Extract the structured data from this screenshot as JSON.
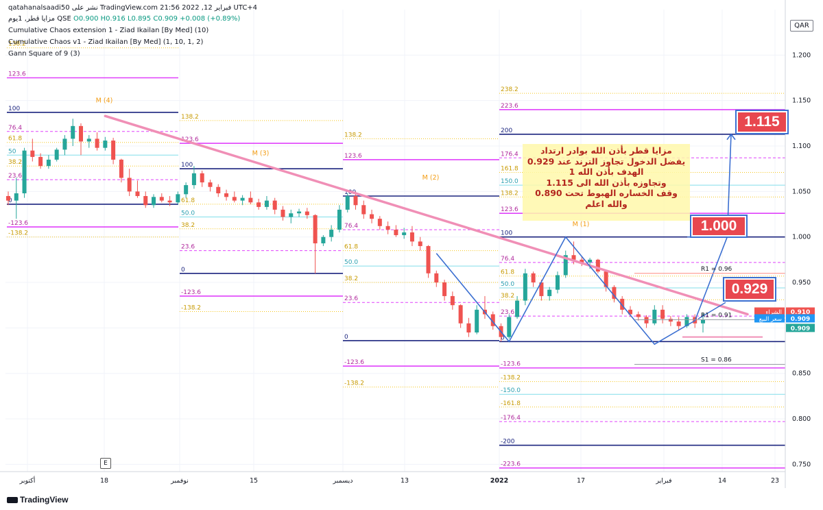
{
  "header": {
    "title_line": "qatahanalsaadi50 نشر على TradingView.com فبراير 12, 2022 21:56 UTC+4",
    "symbol_line": "مزايا قطر, 1يوم  QSE",
    "ohlc": "O0.900  H0.916  L0.895  C0.909  +0.008 (+0.89%)",
    "indicators": [
      "Cumulative Chaos extension 1 - Ziad Ikailan [By Med] (10)",
      "Cumulative Chaos v1 - Ziad Ikailan [By Med] (1, 10, 1, 2)",
      "Gann Square of 9 (3)"
    ]
  },
  "currency_badge": "QAR",
  "brand": "TradingView",
  "earnings_badge": "E",
  "colors": {
    "up": "#26a69a",
    "down": "#ef5350",
    "trend": "#f08fb6",
    "navy": "#1a237e",
    "magenta": "#e040fb",
    "gold": "#f5c518",
    "teal": "#80deea",
    "wave": "#3b6fd1"
  },
  "note_lines": [
    "مزايا قطر بأذن الله بوادر ارتداد",
    "يفضل الدخول تجاوز الترند عند 0.929",
    "الهدف بأذن الله 1",
    "وتجاوزه بأذن الله الى 1.115",
    "وقف الخساره الهبوط تحت 0.890",
    "والله اعلم"
  ],
  "callouts": [
    "1.115",
    "1.000",
    "0.929"
  ],
  "chart_data": {
    "type": "candlestick",
    "y_axis": {
      "ticks": [
        0.75,
        0.8,
        0.85,
        0.9,
        0.95,
        1.0,
        1.05,
        1.1,
        1.15,
        1.2
      ],
      "ylim": [
        0.742,
        1.25
      ]
    },
    "x_axis": {
      "ticks": [
        "أكتوبر",
        "18",
        "نوفمبر",
        "15",
        "ديسمبر",
        "13",
        "2022",
        "17",
        "فبراير",
        "14",
        "23"
      ]
    },
    "price_tags": [
      {
        "label": "الشراء",
        "value": "0.910",
        "color": "#ef5350"
      },
      {
        "label": "سعر البيع",
        "value": "0.909",
        "color": "#2196f3"
      },
      {
        "label": "",
        "value": "0.909",
        "color": "#26a69a"
      }
    ],
    "candles": [
      [
        1.045,
        1.05,
        1.035,
        1.04
      ],
      [
        1.04,
        1.065,
        1.02,
        1.048
      ],
      [
        1.048,
        1.098,
        1.043,
        1.095
      ],
      [
        1.095,
        1.108,
        1.083,
        1.088
      ],
      [
        1.088,
        1.092,
        1.075,
        1.078
      ],
      [
        1.078,
        1.09,
        1.075,
        1.085
      ],
      [
        1.085,
        1.098,
        1.083,
        1.096
      ],
      [
        1.096,
        1.112,
        1.09,
        1.108
      ],
      [
        1.108,
        1.13,
        1.1,
        1.122
      ],
      [
        1.122,
        1.125,
        1.09,
        1.105
      ],
      [
        1.105,
        1.112,
        1.098,
        1.108
      ],
      [
        1.108,
        1.115,
        1.095,
        1.098
      ],
      [
        1.098,
        1.11,
        1.095,
        1.106
      ],
      [
        1.106,
        1.109,
        1.08,
        1.085
      ],
      [
        1.085,
        1.086,
        1.06,
        1.065
      ],
      [
        1.065,
        1.075,
        1.045,
        1.05
      ],
      [
        1.05,
        1.062,
        1.043,
        1.045
      ],
      [
        1.045,
        1.05,
        1.032,
        1.035
      ],
      [
        1.035,
        1.047,
        1.032,
        1.044
      ],
      [
        1.044,
        1.048,
        1.038,
        1.04
      ],
      [
        1.04,
        1.045,
        1.034,
        1.038
      ],
      [
        1.038,
        1.05,
        1.036,
        1.047
      ],
      [
        1.047,
        1.06,
        1.043,
        1.057
      ],
      [
        1.057,
        1.078,
        1.053,
        1.07
      ],
      [
        1.07,
        1.073,
        1.055,
        1.06
      ],
      [
        1.06,
        1.063,
        1.05,
        1.055
      ],
      [
        1.055,
        1.058,
        1.044,
        1.048
      ],
      [
        1.048,
        1.052,
        1.04,
        1.044
      ],
      [
        1.044,
        1.05,
        1.038,
        1.04
      ],
      [
        1.04,
        1.046,
        1.035,
        1.043
      ],
      [
        1.043,
        1.05,
        1.036,
        1.038
      ],
      [
        1.038,
        1.042,
        1.03,
        1.033
      ],
      [
        1.033,
        1.045,
        1.03,
        1.04
      ],
      [
        1.04,
        1.043,
        1.025,
        1.03
      ],
      [
        1.03,
        1.034,
        1.018,
        1.022
      ],
      [
        1.022,
        1.03,
        1.015,
        1.026
      ],
      [
        1.026,
        1.031,
        1.022,
        1.028
      ],
      [
        1.028,
        1.032,
        1.02,
        1.024
      ],
      [
        1.024,
        1.025,
        0.96,
        0.993
      ],
      [
        0.993,
        1.002,
        0.99,
        1.0
      ],
      [
        1.0,
        1.013,
        0.995,
        1.008
      ],
      [
        1.008,
        1.035,
        1.005,
        1.03
      ],
      [
        1.03,
        1.048,
        1.027,
        1.045
      ],
      [
        1.045,
        1.05,
        1.03,
        1.035
      ],
      [
        1.035,
        1.04,
        1.02,
        1.025
      ],
      [
        1.025,
        1.03,
        1.015,
        1.02
      ],
      [
        1.02,
        1.023,
        1.008,
        1.012
      ],
      [
        1.012,
        1.017,
        1.003,
        1.008
      ],
      [
        1.008,
        1.013,
        1.0,
        1.002
      ],
      [
        1.002,
        1.01,
        0.998,
        1.005
      ],
      [
        1.005,
        1.012,
        0.99,
        0.995
      ],
      [
        0.995,
        1.0,
        0.985,
        0.99
      ],
      [
        0.99,
        0.991,
        0.955,
        0.96
      ],
      [
        0.96,
        0.963,
        0.945,
        0.95
      ],
      [
        0.95,
        0.953,
        0.93,
        0.935
      ],
      [
        0.935,
        0.94,
        0.92,
        0.925
      ],
      [
        0.925,
        0.926,
        0.9,
        0.905
      ],
      [
        0.905,
        0.911,
        0.89,
        0.895
      ],
      [
        0.895,
        0.925,
        0.893,
        0.92
      ],
      [
        0.92,
        0.935,
        0.91,
        0.915
      ],
      [
        0.915,
        0.918,
        0.898,
        0.902
      ],
      [
        0.902,
        0.905,
        0.885,
        0.89
      ],
      [
        0.89,
        0.915,
        0.888,
        0.912
      ],
      [
        0.912,
        0.935,
        0.91,
        0.93
      ],
      [
        0.93,
        0.965,
        0.925,
        0.96
      ],
      [
        0.96,
        0.962,
        0.945,
        0.95
      ],
      [
        0.95,
        0.953,
        0.93,
        0.935
      ],
      [
        0.935,
        0.945,
        0.93,
        0.942
      ],
      [
        0.942,
        0.962,
        0.938,
        0.958
      ],
      [
        0.958,
        0.985,
        0.955,
        0.98
      ],
      [
        0.98,
        0.995,
        0.97,
        0.975
      ],
      [
        0.975,
        0.978,
        0.968,
        0.972
      ],
      [
        0.972,
        0.977,
        0.965,
        0.975
      ],
      [
        0.975,
        0.976,
        0.96,
        0.962
      ],
      [
        0.962,
        0.963,
        0.94,
        0.945
      ],
      [
        0.945,
        0.947,
        0.928,
        0.932
      ],
      [
        0.932,
        0.935,
        0.915,
        0.92
      ],
      [
        0.92,
        0.924,
        0.912,
        0.915
      ],
      [
        0.915,
        0.918,
        0.908,
        0.912
      ],
      [
        0.912,
        0.914,
        0.9,
        0.905
      ],
      [
        0.905,
        0.925,
        0.903,
        0.92
      ],
      [
        0.92,
        0.925,
        0.905,
        0.91
      ],
      [
        0.91,
        0.913,
        0.902,
        0.907
      ],
      [
        0.907,
        0.912,
        0.898,
        0.902
      ],
      [
        0.902,
        0.915,
        0.9,
        0.912
      ],
      [
        0.912,
        0.915,
        0.9,
        0.905
      ],
      [
        0.905,
        0.916,
        0.895,
        0.909
      ]
    ],
    "level_blocks": [
      {
        "x0": 10,
        "x1": 260,
        "levels": [
          {
            "v": 1.208,
            "label": "138.2",
            "style": "gold-dot"
          },
          {
            "v": 1.175,
            "label": "123.6",
            "style": "magenta"
          },
          {
            "v": 1.137,
            "label": "100",
            "style": "navy"
          },
          {
            "v": 1.116,
            "label": "76.4",
            "style": "pink-dash"
          },
          {
            "v": 1.104,
            "label": "61.8",
            "style": "gold-dot"
          },
          {
            "v": 1.09,
            "label": "50",
            "style": "teal"
          },
          {
            "v": 1.078,
            "label": "38.2",
            "style": "gold-dot"
          },
          {
            "v": 1.063,
            "label": "23.6",
            "style": "pink-dash"
          },
          {
            "v": 1.036,
            "label": "0",
            "style": "navy"
          },
          {
            "v": 1.011,
            "label": "-123.6",
            "style": "magenta"
          },
          {
            "v": 1.0,
            "label": "-138.2",
            "style": "gold-dot"
          }
        ]
      },
      {
        "x0": 262,
        "x1": 500,
        "levels": [
          {
            "v": 1.128,
            "label": "138.2",
            "style": "gold-dot"
          },
          {
            "v": 1.103,
            "label": "123.6",
            "style": "magenta"
          },
          {
            "v": 1.075,
            "label": "100",
            "style": "navy"
          },
          {
            "v": 1.036,
            "label": "61.8",
            "style": "gold-dot"
          },
          {
            "v": 1.022,
            "label": "50.0",
            "style": "teal"
          },
          {
            "v": 1.009,
            "label": "38.2",
            "style": "gold-dot"
          },
          {
            "v": 0.985,
            "label": "23.6",
            "style": "pink-dash"
          },
          {
            "v": 0.96,
            "label": "0",
            "style": "navy"
          },
          {
            "v": 0.935,
            "label": "-123.6",
            "style": "magenta"
          },
          {
            "v": 0.918,
            "label": "-138.2",
            "style": "gold-dot"
          }
        ]
      },
      {
        "x0": 500,
        "x1": 728,
        "levels": [
          {
            "v": 1.108,
            "label": "138.2",
            "style": "gold-dot"
          },
          {
            "v": 1.085,
            "label": "123.6",
            "style": "magenta"
          },
          {
            "v": 1.045,
            "label": "100",
            "style": "navy"
          },
          {
            "v": 1.008,
            "label": "76.4",
            "style": "pink-dash"
          },
          {
            "v": 0.985,
            "label": "61.8",
            "style": "gold-dot"
          },
          {
            "v": 0.968,
            "label": "50.0",
            "style": "teal"
          },
          {
            "v": 0.95,
            "label": "38.2",
            "style": "gold-dot"
          },
          {
            "v": 0.928,
            "label": "23.6",
            "style": "pink-dash"
          },
          {
            "v": 0.886,
            "label": "0",
            "style": "navy"
          },
          {
            "v": 0.858,
            "label": "-123.6",
            "style": "magenta"
          },
          {
            "v": 0.835,
            "label": "-138.2",
            "style": "gold-dot"
          }
        ]
      },
      {
        "x0": 728,
        "x1": 1145,
        "levels": [
          {
            "v": 1.158,
            "label": "238.2",
            "style": "gold-dot"
          },
          {
            "v": 1.14,
            "label": "223.6",
            "style": "magenta"
          },
          {
            "v": 1.113,
            "label": "200",
            "style": "navy"
          },
          {
            "v": 1.087,
            "label": "176.4",
            "style": "pink-dash"
          },
          {
            "v": 1.071,
            "label": "161.8",
            "style": "gold-dot"
          },
          {
            "v": 1.057,
            "label": "150.0",
            "style": "teal"
          },
          {
            "v": 1.044,
            "label": "138.2",
            "style": "gold-dot"
          },
          {
            "v": 1.026,
            "label": "123.6",
            "style": "magenta"
          },
          {
            "v": 1.0,
            "label": "100",
            "style": "navy"
          },
          {
            "v": 0.972,
            "label": "76.4",
            "style": "pink-dash"
          },
          {
            "v": 0.957,
            "label": "61.8",
            "style": "gold-dot"
          },
          {
            "v": 0.944,
            "label": "50.0",
            "style": "teal"
          },
          {
            "v": 0.931,
            "label": "38.2",
            "style": "gold-dot"
          },
          {
            "v": 0.913,
            "label": "23.6",
            "style": "pink-dash"
          },
          {
            "v": 0.885,
            "label": "0",
            "style": "navy"
          },
          {
            "v": 0.856,
            "label": "-123.6",
            "style": "magenta"
          },
          {
            "v": 0.841,
            "label": "-138.2",
            "style": "gold-dot"
          },
          {
            "v": 0.827,
            "label": "-150.0",
            "style": "teal"
          },
          {
            "v": 0.813,
            "label": "-161.8",
            "style": "gold-dot"
          },
          {
            "v": 0.797,
            "label": "-176.4",
            "style": "pink-dash"
          },
          {
            "v": 0.771,
            "label": "-200",
            "style": "navy"
          },
          {
            "v": 0.746,
            "label": "-223.6",
            "style": "magenta"
          }
        ]
      }
    ],
    "pivots": [
      {
        "label": "R1 = 0.96",
        "v": 0.96
      },
      {
        "label": "R1 = 0.91",
        "v": 0.909
      },
      {
        "label": "S1 = 0.86",
        "v": 0.86
      }
    ],
    "wave_labels": [
      "M (4)",
      "M (3)",
      "M (2)",
      "M (1)"
    ]
  }
}
